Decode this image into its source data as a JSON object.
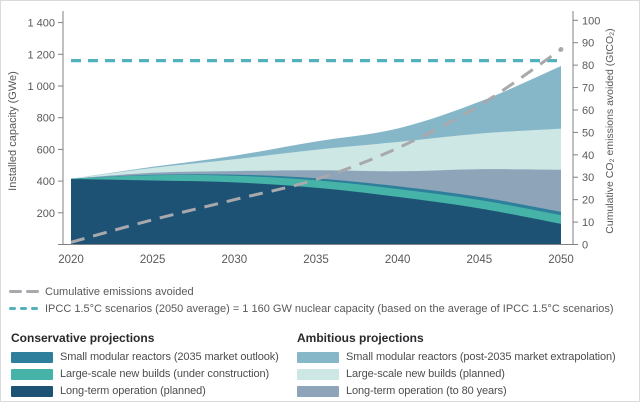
{
  "chart_data": {
    "type": "area",
    "x": [
      2020,
      2025,
      2030,
      2035,
      2040,
      2045,
      2050
    ],
    "x_tick_labels": [
      "2020",
      "2025",
      "2030",
      "2035",
      "2040",
      "2045",
      "2050"
    ],
    "left_axis": {
      "title": "Installed capacity (GWe)",
      "tick_values": [
        200,
        400,
        600,
        800,
        1000,
        1200,
        1400
      ],
      "tick_labels": [
        "200",
        "400",
        "600",
        "800",
        "1 000",
        "1 200",
        "1 400"
      ],
      "range": [
        0,
        1475
      ]
    },
    "right_axis": {
      "title": "Cumulative CO₂ emissions avoided (GtCO₂)",
      "tick_values": [
        0,
        10,
        20,
        30,
        40,
        50,
        60,
        70,
        80,
        90,
        100
      ],
      "tick_labels": [
        "0",
        "10",
        "20",
        "30",
        "40",
        "50",
        "60",
        "70",
        "80",
        "90",
        "100"
      ],
      "range": [
        0,
        100
      ]
    },
    "stack_series": [
      {
        "name": "Long-term operation (planned)",
        "group": "Conservative projections",
        "color": "#1e5274",
        "values": [
          413,
          404,
          392,
          358,
          300,
          228,
          130
        ]
      },
      {
        "name": "Large-scale new builds (under construction)",
        "group": "Conservative projections",
        "color": "#45b3a7",
        "values": [
          2,
          33,
          42,
          47,
          50,
          53,
          55
        ]
      },
      {
        "name": "Small modular reactors (2035 market outlook)",
        "group": "Conservative projections",
        "color": "#2e7f9b",
        "values": [
          0,
          3,
          7,
          13,
          17,
          19,
          21
        ]
      },
      {
        "name": "Long-term operation (to 80 years)",
        "group": "Ambitious projections",
        "color": "#8ea4b9",
        "values": [
          0,
          13,
          22,
          50,
          95,
          175,
          265
        ]
      },
      {
        "name": "Large-scale new builds (planned)",
        "group": "Ambitious projections",
        "color": "#cde7e5",
        "values": [
          0,
          30,
          75,
          130,
          185,
          225,
          260
        ]
      },
      {
        "name": "Small modular reactors (post-2035 market extrapolation)",
        "group": "Ambitious projections",
        "color": "#86b7c9",
        "values": [
          0,
          7,
          22,
          52,
          85,
          200,
          395
        ]
      }
    ],
    "line_series": {
      "name": "Cumulative emissions avoided",
      "axis": "right",
      "color": "#a7a9ac",
      "values": [
        1,
        11,
        20,
        29,
        43,
        62,
        87
      ],
      "end_dot": true
    },
    "reference_line": {
      "name": "IPCC 1.5°C scenarios (2050 average)",
      "axis": "left",
      "value": 1160,
      "color": "#52b2bc"
    },
    "grid": false,
    "legend_position": "bottom"
  },
  "line_legend": [
    {
      "label": "Cumulative emissions avoided",
      "color": "#a7a9ac"
    },
    {
      "label": "IPCC 1.5°C scenarios (2050 average) = 1 160 GW nuclear capacity (based on the average of IPCC 1.5°C scenarios)",
      "color": "#52b2bc"
    }
  ],
  "legend_groups": [
    {
      "title": "Conservative projections",
      "items": [
        {
          "label": "Small modular reactors (2035 market outlook)",
          "color": "#2e7f9b"
        },
        {
          "label": "Large-scale new builds (under construction)",
          "color": "#45b3a7"
        },
        {
          "label": "Long-term operation (planned)",
          "color": "#1e5274"
        }
      ]
    },
    {
      "title": "Ambitious projections",
      "items": [
        {
          "label": "Small modular reactors (post-2035 market extrapolation)",
          "color": "#86b7c9"
        },
        {
          "label": "Large-scale new builds (planned)",
          "color": "#cde7e5"
        },
        {
          "label": "Long-term operation (to 80 years)",
          "color": "#8ea4b9"
        }
      ]
    }
  ]
}
